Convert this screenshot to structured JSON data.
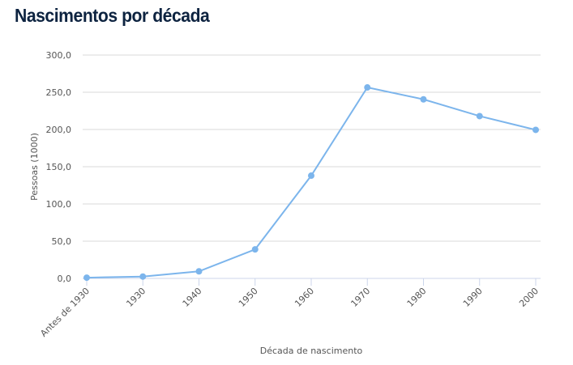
{
  "chart_data": {
    "type": "line",
    "title": "Nascimentos por década",
    "xlabel": "Década de nascimento",
    "ylabel": "Pessoas (1000)",
    "categories": [
      "Antes de 1930",
      "1930",
      "1940",
      "1950",
      "1960",
      "1970",
      "1980",
      "1990",
      "2000"
    ],
    "series": [
      {
        "values": [
          1.0,
          2.5,
          9.5,
          39.0,
          138.0,
          256.5,
          240.5,
          218.0,
          199.5
        ]
      }
    ],
    "ylim": [
      0,
      300
    ],
    "yticks": [
      "0,0",
      "50,0",
      "100,0",
      "150,0",
      "200,0",
      "250,0",
      "300,0"
    ],
    "grid": true,
    "legend": "none",
    "colors": {
      "line": "#7cb5ec",
      "title": "#0d2340",
      "grid": "#d8d8d8",
      "axis": "#ccd6eb"
    }
  }
}
